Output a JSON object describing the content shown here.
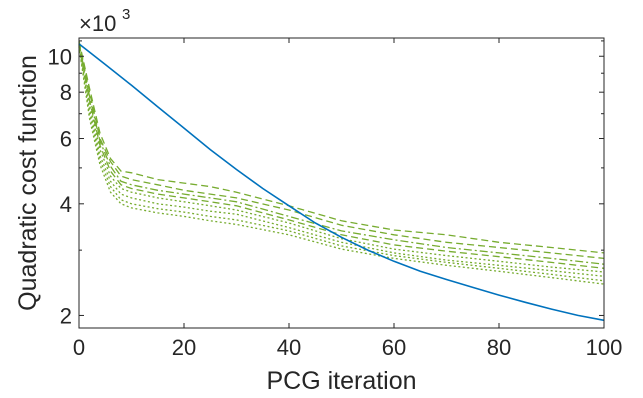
{
  "chart_data": {
    "type": "line",
    "xlabel": "PCG iteration",
    "ylabel": "Quadratic cost function",
    "y_exponent_label": "×10",
    "y_exponent_power": "3",
    "xlim": [
      0,
      100
    ],
    "ylim": [
      1.85,
      11.2
    ],
    "yscale": "log",
    "grid": false,
    "xticks": [
      0,
      20,
      40,
      60,
      80,
      100
    ],
    "yticks": [
      2,
      4,
      6,
      8,
      10
    ],
    "colors": {
      "main": "#0072BD",
      "green": "#77AC30",
      "axis": "#262626"
    },
    "main_series": {
      "x": [
        0,
        5,
        10,
        15,
        20,
        25,
        30,
        35,
        40,
        45,
        50,
        55,
        60,
        65,
        70,
        75,
        80,
        85,
        90,
        95,
        100
      ],
      "y": [
        10.8,
        9.5,
        8.35,
        7.3,
        6.4,
        5.6,
        4.95,
        4.4,
        3.95,
        3.55,
        3.25,
        3.0,
        2.8,
        2.63,
        2.5,
        2.38,
        2.27,
        2.17,
        2.08,
        2.0,
        1.94
      ]
    },
    "green_series": [
      {
        "style": "dashed",
        "x": [
          0,
          2,
          4,
          6,
          8,
          10,
          15,
          20,
          25,
          30,
          40,
          50,
          60,
          70,
          80,
          90,
          100
        ],
        "y": [
          11.0,
          8.2,
          6.2,
          5.3,
          4.9,
          4.85,
          4.65,
          4.55,
          4.45,
          4.3,
          3.95,
          3.6,
          3.4,
          3.3,
          3.15,
          3.05,
          2.95
        ]
      },
      {
        "style": "dashed",
        "x": [
          0,
          2,
          4,
          6,
          8,
          10,
          15,
          20,
          25,
          30,
          40,
          50,
          60,
          70,
          80,
          90,
          100
        ],
        "y": [
          10.9,
          8.0,
          6.0,
          5.2,
          4.75,
          4.65,
          4.5,
          4.35,
          4.25,
          4.15,
          3.85,
          3.5,
          3.3,
          3.15,
          3.05,
          2.95,
          2.85
        ]
      },
      {
        "style": "dashdot",
        "x": [
          0,
          2,
          4,
          6,
          8,
          10,
          15,
          20,
          25,
          30,
          40,
          50,
          60,
          70,
          80,
          90,
          100
        ],
        "y": [
          10.85,
          7.8,
          5.9,
          5.05,
          4.6,
          4.5,
          4.35,
          4.25,
          4.15,
          4.05,
          3.7,
          3.38,
          3.2,
          3.05,
          2.95,
          2.85,
          2.75
        ]
      },
      {
        "style": "dashed",
        "x": [
          0,
          2,
          4,
          6,
          8,
          10,
          15,
          20,
          25,
          30,
          40,
          50,
          60,
          70,
          80,
          90,
          100
        ],
        "y": [
          10.8,
          7.6,
          5.75,
          4.9,
          4.5,
          4.4,
          4.25,
          4.15,
          4.05,
          3.95,
          3.62,
          3.3,
          3.1,
          2.98,
          2.88,
          2.78,
          2.68
        ]
      },
      {
        "style": "dotted",
        "x": [
          0,
          2,
          4,
          6,
          8,
          10,
          15,
          20,
          25,
          30,
          40,
          50,
          60,
          70,
          80,
          90,
          100
        ],
        "y": [
          10.75,
          7.4,
          5.6,
          4.75,
          4.4,
          4.3,
          4.15,
          4.05,
          3.95,
          3.85,
          3.55,
          3.22,
          3.02,
          2.9,
          2.8,
          2.7,
          2.62
        ]
      },
      {
        "style": "dotted",
        "x": [
          0,
          2,
          4,
          6,
          8,
          10,
          15,
          20,
          25,
          30,
          40,
          50,
          60,
          70,
          80,
          90,
          100
        ],
        "y": [
          10.7,
          7.2,
          5.4,
          4.6,
          4.25,
          4.15,
          4.0,
          3.92,
          3.82,
          3.75,
          3.45,
          3.15,
          2.95,
          2.82,
          2.73,
          2.64,
          2.55
        ]
      },
      {
        "style": "dotted",
        "x": [
          0,
          2,
          4,
          6,
          8,
          10,
          15,
          20,
          25,
          30,
          40,
          50,
          60,
          70,
          80,
          90,
          100
        ],
        "y": [
          10.65,
          7.0,
          5.25,
          4.45,
          4.1,
          4.0,
          3.88,
          3.8,
          3.7,
          3.62,
          3.38,
          3.08,
          2.9,
          2.78,
          2.68,
          2.58,
          2.48
        ]
      },
      {
        "style": "dotted",
        "x": [
          0,
          2,
          4,
          6,
          8,
          10,
          15,
          20,
          25,
          30,
          40,
          50,
          60,
          70,
          80,
          90,
          100
        ],
        "y": [
          10.6,
          6.8,
          5.1,
          4.3,
          4.0,
          3.9,
          3.78,
          3.7,
          3.6,
          3.52,
          3.3,
          3.02,
          2.85,
          2.73,
          2.63,
          2.53,
          2.43
        ]
      }
    ]
  }
}
